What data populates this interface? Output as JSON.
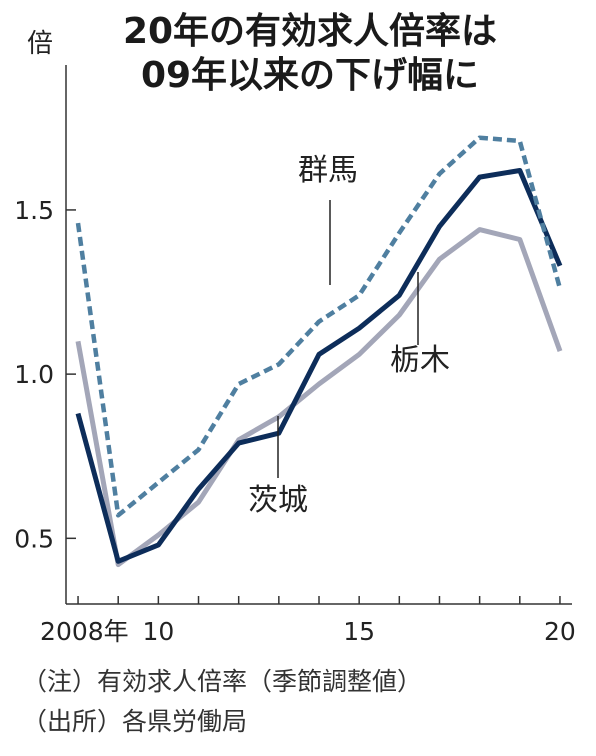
{
  "title": {
    "line1": "20年の有効求人倍率は",
    "line2": "09年以来の下げ幅に"
  },
  "notes": {
    "note1": "（注）有効求人倍率（季節調整値）",
    "note2": "（出所）各県労働局"
  },
  "chart_data": {
    "type": "line",
    "ylabel": "倍",
    "x": [
      2008,
      2009,
      2010,
      2011,
      2012,
      2013,
      2014,
      2015,
      2016,
      2017,
      2018,
      2019,
      2020
    ],
    "x_ticks": [
      {
        "value": 2008,
        "label": "2008年"
      },
      {
        "value": 2010,
        "label": "10"
      },
      {
        "value": 2015,
        "label": "15"
      },
      {
        "value": 2020,
        "label": "20"
      }
    ],
    "y_ticks": [
      {
        "value": 0.5,
        "label": "0.5"
      },
      {
        "value": 1.0,
        "label": "1.0"
      },
      {
        "value": 1.5,
        "label": "1.5"
      }
    ],
    "xlim": [
      2007.7,
      2020.3
    ],
    "ylim": [
      0.3,
      1.85
    ],
    "grid": false,
    "series": [
      {
        "name": "群馬",
        "color": "#4f7fa0",
        "dash": "dotted",
        "values": [
          1.46,
          0.57,
          0.67,
          0.77,
          0.97,
          1.03,
          1.16,
          1.24,
          1.43,
          1.61,
          1.72,
          1.71,
          1.26
        ]
      },
      {
        "name": "栃木",
        "color": "#0d2d5a",
        "dash": "solid",
        "values": [
          0.88,
          0.43,
          0.48,
          0.65,
          0.79,
          0.82,
          1.06,
          1.14,
          1.24,
          1.45,
          1.6,
          1.62,
          1.33
        ]
      },
      {
        "name": "茨城",
        "color": "#a3a6b8",
        "dash": "solid",
        "values": [
          1.1,
          0.42,
          0.51,
          0.61,
          0.8,
          0.87,
          0.97,
          1.06,
          1.18,
          1.35,
          1.44,
          1.41,
          1.07
        ]
      }
    ],
    "annotations": [
      {
        "series": "群馬",
        "label": "群馬"
      },
      {
        "series": "栃木",
        "label": "栃木"
      },
      {
        "series": "茨城",
        "label": "茨城"
      }
    ]
  }
}
